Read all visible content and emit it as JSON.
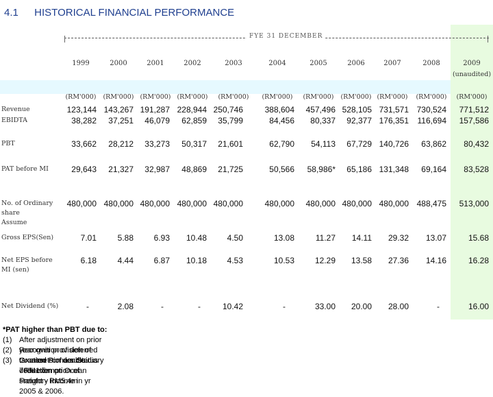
{
  "header": {
    "number": "4.1",
    "title": "HISTORICAL FINANCIAL PERFORMANCE"
  },
  "period_label": "FYE 31 DECEMBER",
  "years": [
    "1999",
    "2000",
    "2001",
    "2002",
    "2003",
    "2004",
    "2005",
    "2006",
    "2007",
    "2008",
    "2009"
  ],
  "audited_label": "(unaudited)",
  "units": [
    "(RM'000)",
    "(RM'000)",
    "(RM'000)",
    "(RM'000)",
    "(RM'000)",
    "(RM'000)",
    "(RM'000)",
    "(RM'000)",
    "(RM'000)",
    "(RM'000)",
    "(RM'000)"
  ],
  "rows": [
    {
      "label": "Revenue",
      "values": [
        "123,144",
        "143,267",
        "191,287",
        "228,944",
        "250,746",
        "388,604",
        "457,496",
        "528,105",
        "731,571",
        "730,524",
        "771,512"
      ]
    },
    {
      "label": "EBIDTA",
      "values": [
        "38,282",
        "37,251",
        "46,079",
        "62,859",
        "35,799",
        "84,456",
        "80,337",
        "92,377",
        "176,351",
        "116,694",
        "157,586"
      ]
    },
    {
      "label": "PBT",
      "values": [
        "33,662",
        "28,212",
        "33,273",
        "50,317",
        "21,601",
        "62,790",
        "54,113",
        "67,729",
        "140,726",
        "63,862",
        "80,432"
      ]
    },
    {
      "label": "PAT before MI",
      "values": [
        "29,643",
        "21,327",
        "32,987",
        "48,869",
        "21,725",
        "50,566",
        "58,986*",
        "65,186",
        "131,348",
        "69,164",
        "83,528"
      ]
    },
    {
      "label": "No. of Ordinary share",
      "label2": "Assume",
      "values": [
        "480,000",
        "480,000",
        "480,000",
        "480,000",
        "480,000",
        "480,000",
        "480,000",
        "480,000",
        "480,000",
        "488,475",
        "513,000"
      ]
    },
    {
      "label": "Gross EPS(Sen)",
      "values": [
        "7.01",
        "5.88",
        "6.93",
        "10.48",
        "4.50",
        "13.08",
        "11.27",
        "14.11",
        "29.32",
        "13.07",
        "15.68"
      ]
    },
    {
      "label": "Net EPS before",
      "label2": "MI (sen)",
      "values": [
        "6.18",
        "4.44",
        "6.87",
        "10.18",
        "4.53",
        "10.53",
        "12.29",
        "13.58",
        "27.36",
        "14.16",
        "16.28"
      ]
    },
    {
      "label": "Net Dividend (%)",
      "values": [
        "-",
        "2.08",
        "-",
        "-",
        "10.42",
        "-",
        "33.00",
        "20.00",
        "28.00",
        "-",
        "16.00"
      ]
    }
  ],
  "footnotes": {
    "title": "*PAT higher than PBT due to:",
    "items": [
      {
        "num": "(1)",
        "text": "After adjustment on prior year over provision of taxation - on double deduction on Ocean Freight - RM5.4m"
      },
      {
        "num": "(2)",
        "text": "Recognition of deferred tax assets of a subsidiary  - RM1.5m"
      },
      {
        "num": "(3)",
        "text": "Granted Pioneer Status 70% exemption of statutory income in yr 2005 & 2006."
      }
    ]
  },
  "colors": {
    "title": "#1f3f8f",
    "band": "#e6f9ff",
    "highlight": "#e8fbe0"
  }
}
